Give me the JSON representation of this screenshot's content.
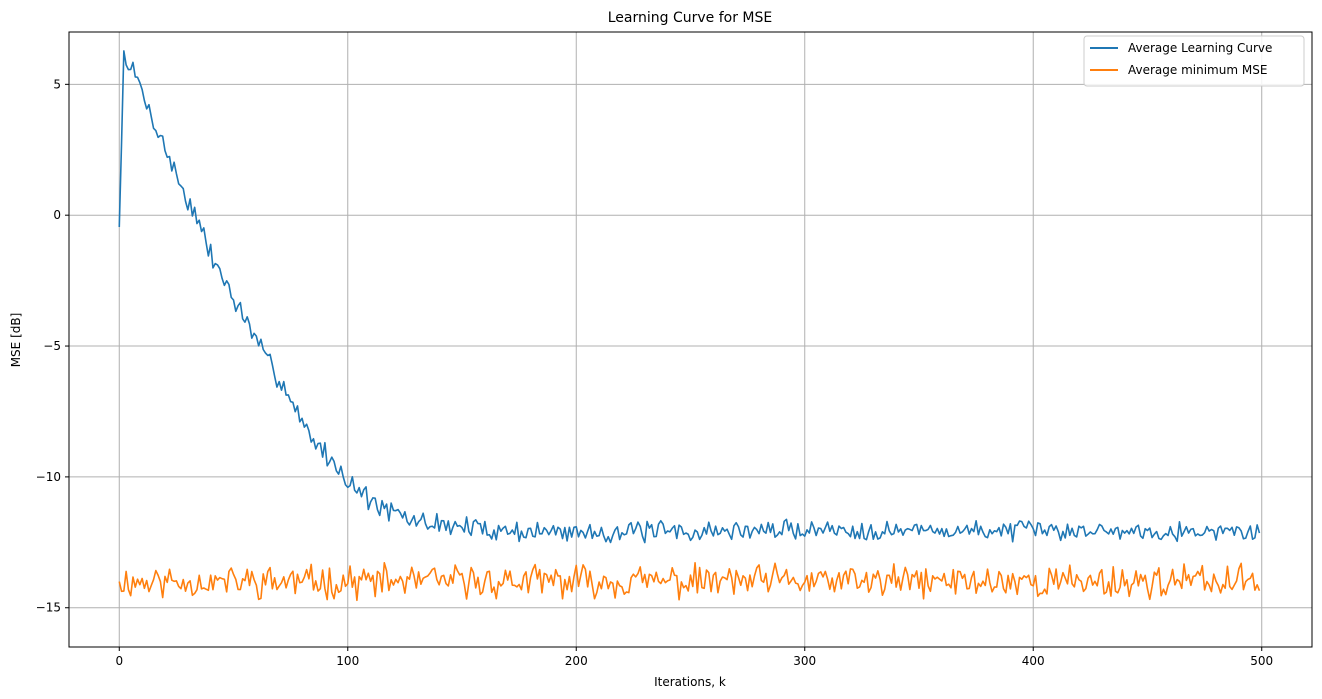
{
  "chart_data": {
    "type": "line",
    "title": "Learning Curve for MSE",
    "xlabel": "Iterations, k",
    "ylabel": "MSE [dB]",
    "xlim": [
      -22,
      522
    ],
    "ylim": [
      -16.5,
      7.0
    ],
    "xticks": [
      0,
      100,
      200,
      300,
      400,
      500
    ],
    "yticks": [
      5,
      0,
      -5,
      -10,
      -15
    ],
    "ytick_labels": [
      "5",
      "0",
      "−5",
      "−10",
      "−15"
    ],
    "grid": true,
    "legend_position": "top-right",
    "series": [
      {
        "name": "Average Learning Curve",
        "color": "#1f77b4",
        "anchors": [
          [
            0,
            -0.45
          ],
          [
            2,
            6.05
          ],
          [
            5,
            5.7
          ],
          [
            10,
            4.7
          ],
          [
            15,
            3.6
          ],
          [
            20,
            2.6
          ],
          [
            25,
            1.5
          ],
          [
            30,
            0.6
          ],
          [
            35,
            -0.4
          ],
          [
            40,
            -1.5
          ],
          [
            45,
            -2.3
          ],
          [
            50,
            -3.2
          ],
          [
            55,
            -4.0
          ],
          [
            60,
            -4.8
          ],
          [
            65,
            -5.6
          ],
          [
            70,
            -6.2
          ],
          [
            75,
            -7.0
          ],
          [
            80,
            -7.9
          ],
          [
            85,
            -8.6
          ],
          [
            90,
            -9.1
          ],
          [
            95,
            -9.6
          ],
          [
            100,
            -10.1
          ],
          [
            105,
            -10.5
          ],
          [
            110,
            -10.9
          ],
          [
            115,
            -11.2
          ],
          [
            120,
            -11.4
          ],
          [
            125,
            -11.6
          ],
          [
            130,
            -11.7
          ],
          [
            140,
            -11.8
          ],
          [
            150,
            -11.9
          ],
          [
            160,
            -12.0
          ],
          [
            170,
            -12.05
          ],
          [
            180,
            -12.1
          ],
          [
            200,
            -12.1
          ],
          [
            250,
            -12.1
          ],
          [
            300,
            -12.0
          ],
          [
            350,
            -12.05
          ],
          [
            400,
            -12.05
          ],
          [
            450,
            -12.05
          ],
          [
            499,
            -12.1
          ]
        ],
        "noise_start": 0.35,
        "noise_end": 0.28,
        "seed": 7
      },
      {
        "name": "Average minimum MSE",
        "color": "#ff7f0e",
        "anchors": [
          [
            0,
            -14.0
          ],
          [
            499,
            -14.0
          ]
        ],
        "noise_start": 0.5,
        "noise_end": 0.5,
        "seed": 11
      }
    ]
  }
}
